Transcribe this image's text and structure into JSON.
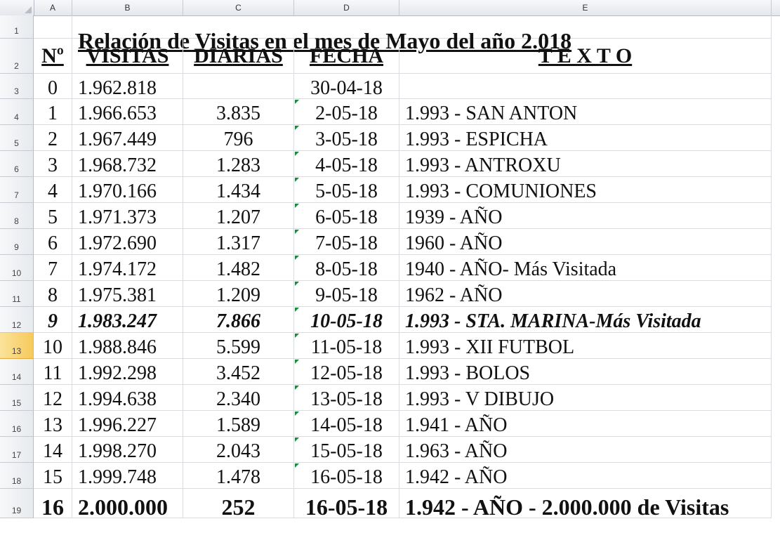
{
  "columns": [
    "A",
    "B",
    "C",
    "D",
    "E"
  ],
  "rows": [
    "1",
    "2",
    "3",
    "4",
    "5",
    "6",
    "7",
    "8",
    "9",
    "10",
    "11",
    "12",
    "13",
    "14",
    "15",
    "16",
    "17",
    "18",
    "19"
  ],
  "title": "Relación de Visitas en el mes de Mayo del año 2.018",
  "headers": {
    "n": "Nº",
    "visitas": "VISITAS",
    "diarias": "DIARIAS",
    "fecha": "FECHA",
    "texto": "T E X T O"
  },
  "data": [
    {
      "n": "0",
      "visitas": "1.962.818",
      "diarias": "",
      "fecha": "30-04-18",
      "texto": ""
    },
    {
      "n": "1",
      "visitas": "1.966.653",
      "diarias": "3.835",
      "fecha": "2-05-18",
      "texto": "1.993 - SAN ANTON"
    },
    {
      "n": "2",
      "visitas": "1.967.449",
      "diarias": "796",
      "fecha": "3-05-18",
      "texto": "1.993 - ESPICHA"
    },
    {
      "n": "3",
      "visitas": "1.968.732",
      "diarias": "1.283",
      "fecha": "4-05-18",
      "texto": "1.993 - ANTROXU"
    },
    {
      "n": "4",
      "visitas": "1.970.166",
      "diarias": "1.434",
      "fecha": "5-05-18",
      "texto": "1.993 - COMUNIONES"
    },
    {
      "n": "5",
      "visitas": "1.971.373",
      "diarias": "1.207",
      "fecha": "6-05-18",
      "texto": "1939 - AÑO"
    },
    {
      "n": "6",
      "visitas": "1.972.690",
      "diarias": "1.317",
      "fecha": "7-05-18",
      "texto": "1960 - AÑO"
    },
    {
      "n": "7",
      "visitas": "1.974.172",
      "diarias": "1.482",
      "fecha": "8-05-18",
      "texto": "1940 - AÑO- Más Visitada"
    },
    {
      "n": "8",
      "visitas": "1.975.381",
      "diarias": "1.209",
      "fecha": "9-05-18",
      "texto": "1962 - AÑO"
    },
    {
      "n": "9",
      "visitas": "1.983.247",
      "diarias": "7.866",
      "fecha": "10-05-18",
      "texto": "1.993 - STA. MARINA-Más Visitada"
    },
    {
      "n": "10",
      "visitas": "1.988.846",
      "diarias": "5.599",
      "fecha": "11-05-18",
      "texto": "1.993 - XII FUTBOL"
    },
    {
      "n": "11",
      "visitas": "1.992.298",
      "diarias": "3.452",
      "fecha": "12-05-18",
      "texto": "1.993 - BOLOS"
    },
    {
      "n": "12",
      "visitas": "1.994.638",
      "diarias": "2.340",
      "fecha": "13-05-18",
      "texto": "1.993 - V DIBUJO"
    },
    {
      "n": "13",
      "visitas": "1.996.227",
      "diarias": "1.589",
      "fecha": "14-05-18",
      "texto": "1.941 - AÑO"
    },
    {
      "n": "14",
      "visitas": "1.998.270",
      "diarias": "2.043",
      "fecha": "15-05-18",
      "texto": "1.963 - AÑO"
    },
    {
      "n": "15",
      "visitas": "1.999.748",
      "diarias": "1.478",
      "fecha": "16-05-18",
      "texto": "1.942 - AÑO"
    },
    {
      "n": "16",
      "visitas": "2.000.000",
      "diarias": "252",
      "fecha": "16-05-18",
      "texto": "1.942 - AÑO - 2.000.000 de Visitas"
    }
  ]
}
